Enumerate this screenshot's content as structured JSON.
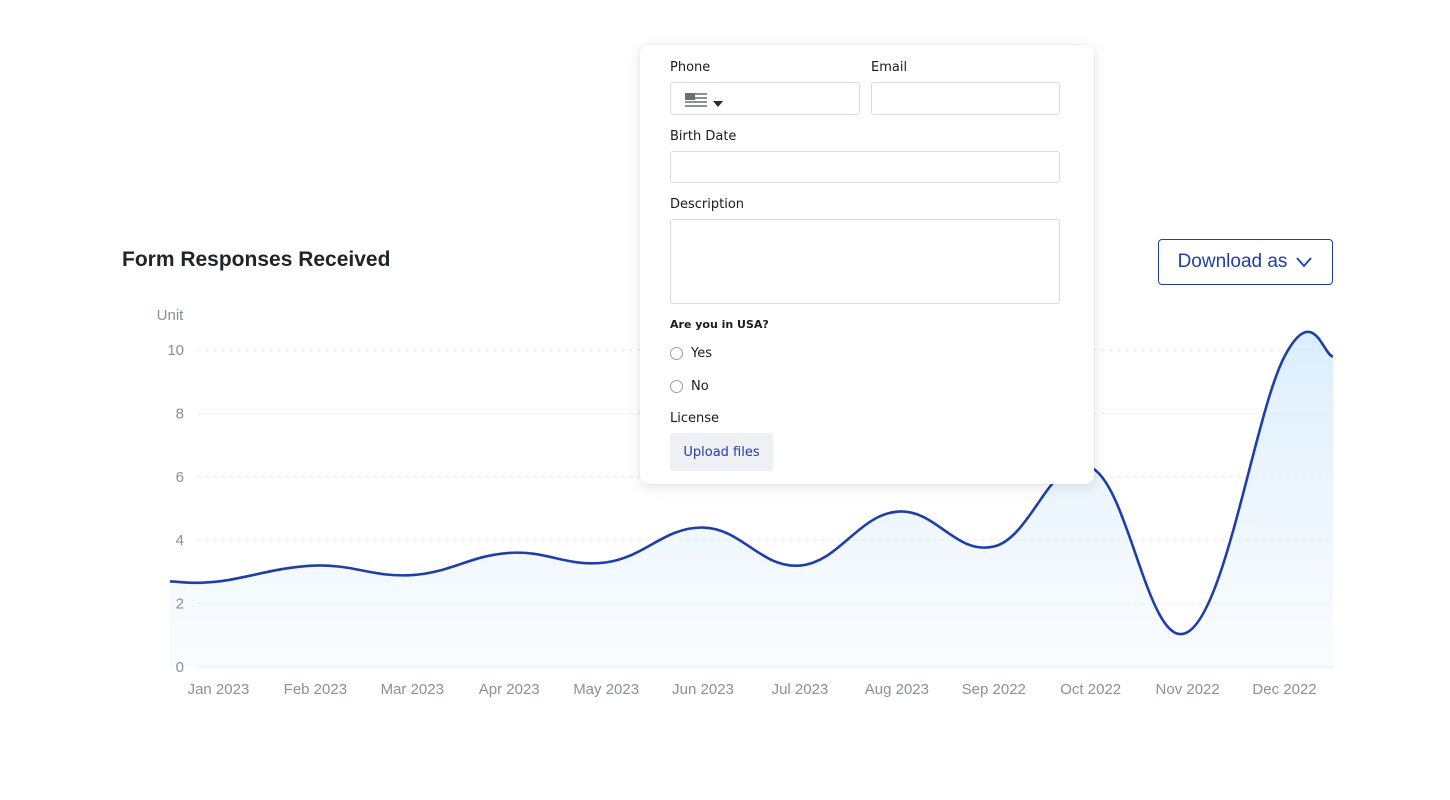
{
  "chart_title": "Form Responses Received",
  "download": {
    "label": "Download as",
    "icon": "chevron-down-icon"
  },
  "colors": {
    "line": "#1f3ea8",
    "fill": "#dcefff",
    "grid": "#e8eaed",
    "axis_text": "#8a9099",
    "button_accent": "#1f3ea8"
  },
  "chart_data": {
    "type": "area",
    "ylabel": "Unit",
    "xlabel": "",
    "ylim": [
      0,
      10
    ],
    "yticks": [
      0,
      2,
      4,
      6,
      8,
      10
    ],
    "grid": true,
    "categories": [
      "Jan 2023",
      "Feb 2023",
      "Mar 2023",
      "Apr 2023",
      "May 2023",
      "Jun 2023",
      "Jul 2023",
      "Aug 2023",
      "Sep 2022",
      "Oct 2022",
      "Nov 2022",
      "Dec 2022"
    ],
    "series": [
      {
        "values": [
          2.7,
          3.2,
          2.9,
          3.6,
          3.3,
          4.4,
          3.2,
          4.9,
          3.8,
          6.3,
          1.1,
          9.8
        ]
      }
    ]
  },
  "form": {
    "phone_label": "Phone",
    "phone_flag_icon": "us-flag-icon",
    "phone_dropdown_icon": "caret-down-icon",
    "phone_value": "",
    "email_label": "Email",
    "email_value": "",
    "birth_date_label": "Birth Date",
    "birth_date_value": "",
    "description_label": "Description",
    "description_value": "",
    "question_label": "Are you in USA?",
    "options": [
      "Yes",
      "No"
    ],
    "license_label": "License",
    "upload_label": "Upload files"
  }
}
